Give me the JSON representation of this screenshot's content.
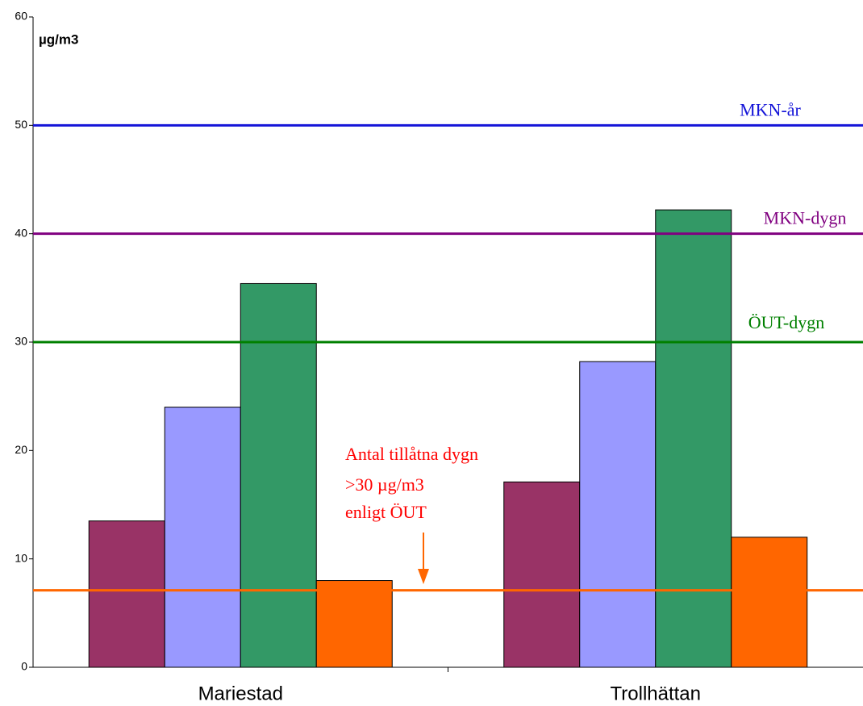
{
  "chart_data": {
    "type": "bar",
    "y_label": "µg/m3",
    "categories": [
      "Mariestad",
      "Trollhättan"
    ],
    "series": [
      {
        "color": "#993366",
        "values": [
          13.5,
          17.1
        ]
      },
      {
        "color": "#9999ff",
        "values": [
          24,
          28.2
        ]
      },
      {
        "color": "#339966",
        "values": [
          35.4,
          42.2
        ]
      },
      {
        "color": "#ff6600",
        "values": [
          8,
          12
        ]
      }
    ],
    "reference_lines": [
      {
        "label": "MKN-år",
        "value": 50,
        "color": "#1414d8"
      },
      {
        "label": "MKN-dygn",
        "value": 40,
        "color": "#800080"
      },
      {
        "label": "ÖUT-dygn",
        "value": 30,
        "color": "#008000"
      },
      {
        "value": 7.1,
        "color": "#ff6600"
      }
    ],
    "annotation": {
      "lines": [
        "Antal tillåtna dygn",
        ">30 µg/m3",
        "enligt ÖUT"
      ],
      "color": "#ff0000",
      "arrow_color": "#ff6600"
    },
    "ylim": [
      0,
      60
    ],
    "yticks": [
      0,
      10,
      20,
      30,
      40,
      50,
      60
    ]
  }
}
